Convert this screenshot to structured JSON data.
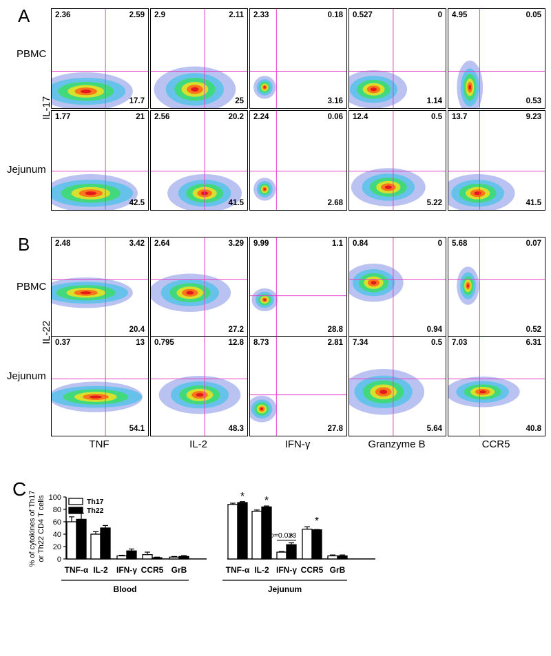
{
  "panels": {
    "A": {
      "letter": "A",
      "marker": "IL-17",
      "rows": [
        {
          "label": "PBMC",
          "quadrants": [
            [
              "2.36",
              "2.59",
              "17.7"
            ],
            [
              "2.9",
              "2.11",
              "25"
            ],
            [
              "2.33",
              "0.18",
              "3.16"
            ],
            [
              "0.527",
              "0",
              "1.14"
            ],
            [
              "4.95",
              "0.05",
              "0.53"
            ]
          ]
        },
        {
          "label": "Jejunum",
          "quadrants": [
            [
              "1.77",
              "21",
              "42.5"
            ],
            [
              "2.56",
              "20.2",
              "41.5"
            ],
            [
              "2.24",
              "0.06",
              "2.68"
            ],
            [
              "12.4",
              "0.5",
              "5.22"
            ],
            [
              "13.7",
              "9.23",
              "41.5"
            ]
          ]
        }
      ]
    },
    "B": {
      "letter": "B",
      "marker": "IL-22",
      "rows": [
        {
          "label": "PBMC",
          "quadrants": [
            [
              "2.48",
              "3.42",
              "20.4"
            ],
            [
              "2.64",
              "3.29",
              "27.2"
            ],
            [
              "9.99",
              "1.1",
              "28.8"
            ],
            [
              "0.84",
              "0",
              "0.94"
            ],
            [
              "5.68",
              "0.07",
              "0.52"
            ]
          ]
        },
        {
          "label": "Jejunum",
          "quadrants": [
            [
              "0.37",
              "13",
              "54.1"
            ],
            [
              "0.795",
              "12.8",
              "48.3"
            ],
            [
              "8.73",
              "2.81",
              "27.8"
            ],
            [
              "7.34",
              "0.5",
              "5.64"
            ],
            [
              "7.03",
              "6.31",
              "40.8"
            ]
          ]
        }
      ]
    },
    "columns": [
      "TNF",
      "IL-2",
      "IFN-γ",
      "Granzyme B",
      "CCR5"
    ]
  },
  "panelC": {
    "letter": "C",
    "chart_data": {
      "type": "bar",
      "ylabel": "% of cytokines of Th17 or Th22 CD4 T cells",
      "ylim": [
        0,
        100
      ],
      "yticks": [
        0,
        20,
        40,
        60,
        80,
        100
      ],
      "categories": [
        "TNF-α",
        "IL-2",
        "IFN-γ",
        "CCR5",
        "GrB",
        "TNF-α",
        "IL-2",
        "IFN-γ",
        "CCR5",
        "GrB"
      ],
      "groups": [
        {
          "name": "Blood",
          "span": [
            0,
            4
          ]
        },
        {
          "name": "Jejunum",
          "span": [
            5,
            9
          ]
        }
      ],
      "series": [
        {
          "name": "Th17",
          "color": "#ffffff",
          "values": [
            60,
            40,
            5,
            7,
            3,
            88,
            77,
            11,
            48,
            5
          ],
          "errors": [
            8,
            4,
            1,
            4,
            1,
            2,
            2,
            1,
            4,
            1.5
          ]
        },
        {
          "name": "Th22",
          "color": "#000000",
          "values": [
            64,
            50,
            13,
            2,
            4,
            91,
            84,
            23,
            47,
            5
          ],
          "errors": [
            10,
            4,
            3,
            1,
            1.5,
            1.5,
            1.5,
            3,
            0.5,
            1.5
          ]
        }
      ],
      "significance_marks": [
        {
          "category_index": 5,
          "text": "*"
        },
        {
          "category_index": 6,
          "text": "*"
        },
        {
          "category_index": 7,
          "text": "*"
        },
        {
          "category_index": 8,
          "text": "*"
        }
      ],
      "pvalue_annotation": {
        "category_index": 7,
        "p_label": "p",
        "text": "=0.023"
      }
    }
  }
}
